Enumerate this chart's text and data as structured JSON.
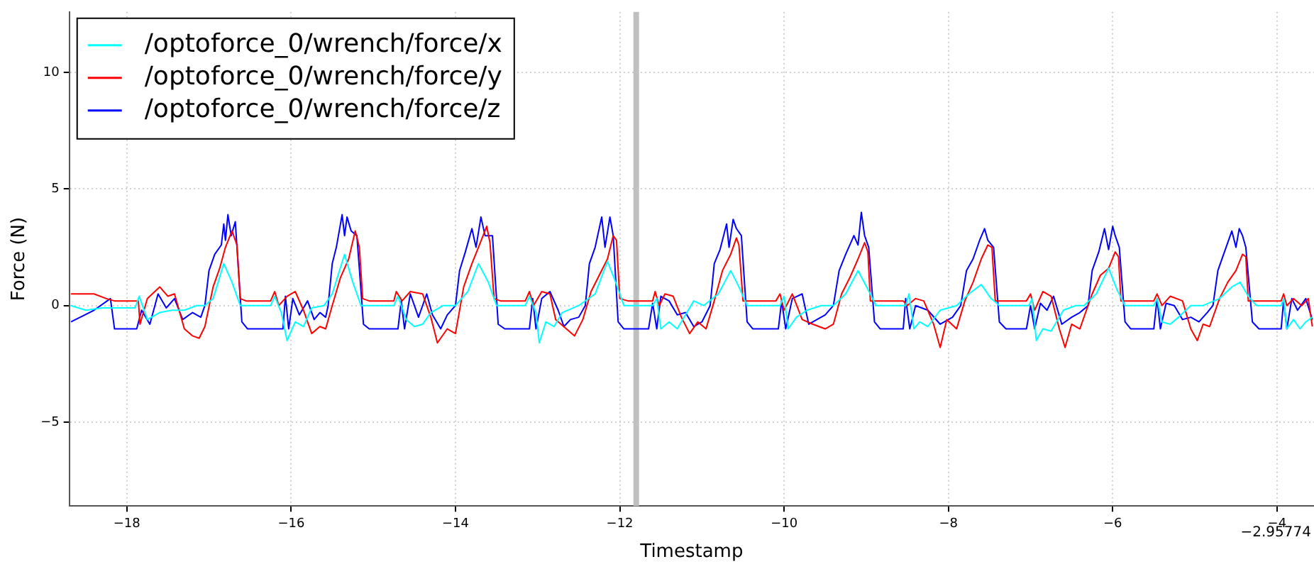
{
  "chart_data": {
    "type": "line",
    "xlabel": "Timestamp",
    "ylabel": "Force (N)",
    "legend": "top left",
    "grid": true,
    "marker": "none",
    "xlim": [
      -18.7,
      -3.55
    ],
    "ylim": [
      -8.6,
      12.6
    ],
    "xticks": [
      {
        "value": -18,
        "label": "−18"
      },
      {
        "value": -16,
        "label": "−16"
      },
      {
        "value": -14,
        "label": "−14"
      },
      {
        "value": -12,
        "label": "−12"
      },
      {
        "value": -10,
        "label": "−10"
      },
      {
        "value": -8,
        "label": "−8"
      },
      {
        "value": -6,
        "label": "−6"
      },
      {
        "value": -4,
        "label": "−4"
      }
    ],
    "yticks": [
      {
        "value": -5,
        "label": "−5"
      },
      0,
      5,
      10
    ],
    "ref_lines": [
      {
        "axis": "x",
        "value": -11.8,
        "color": "#c0c0c0"
      }
    ],
    "annotations": [
      "−2.95774"
    ],
    "series": [
      {
        "name": "/optoforce_0/wrench/force/x",
        "color": "#00ffff",
        "x": [
          -18.68,
          -18.5,
          -18.3,
          -17.9,
          -17.85,
          -17.75,
          -17.6,
          -17.45,
          -17.3,
          -17.15,
          -17.05,
          -16.95,
          -16.82,
          -16.72,
          -16.62,
          -16.25,
          -16.2,
          -16.12,
          -16.05,
          -15.95,
          -15.85,
          -15.75,
          -15.6,
          -15.5,
          -15.35,
          -15.25,
          -15.15,
          -14.75,
          -14.7,
          -14.6,
          -14.5,
          -14.4,
          -14.3,
          -14.15,
          -14.0,
          -13.85,
          -13.72,
          -13.6,
          -13.5,
          -13.15,
          -13.1,
          -13.02,
          -12.98,
          -12.9,
          -12.8,
          -12.7,
          -12.5,
          -12.3,
          -12.15,
          -12.05,
          -11.95,
          -11.6,
          -11.55,
          -11.5,
          -11.4,
          -11.3,
          -11.2,
          -11.1,
          -10.98,
          -10.8,
          -10.65,
          -10.55,
          -10.45,
          -10.05,
          -10.0,
          -9.95,
          -9.85,
          -9.72,
          -9.55,
          -9.4,
          -9.25,
          -9.1,
          -8.98,
          -8.88,
          -8.52,
          -8.48,
          -8.42,
          -8.35,
          -8.25,
          -8.1,
          -7.9,
          -7.75,
          -7.6,
          -7.48,
          -7.38,
          -7.02,
          -6.98,
          -6.93,
          -6.85,
          -6.75,
          -6.6,
          -6.45,
          -6.35,
          -6.2,
          -6.05,
          -5.95,
          -5.85,
          -5.5,
          -5.46,
          -5.4,
          -5.3,
          -5.2,
          -5.05,
          -4.9,
          -4.7,
          -4.55,
          -4.45,
          -4.35,
          -4.25,
          -3.95,
          -3.92,
          -3.88,
          -3.8,
          -3.72,
          -3.65,
          -3.57
        ],
        "values": [
          0.0,
          -0.2,
          -0.1,
          -0.1,
          0.4,
          -0.6,
          -0.3,
          -0.2,
          -0.2,
          0.0,
          0.0,
          0.3,
          1.8,
          1.0,
          0.0,
          0.0,
          0.4,
          -0.3,
          -1.5,
          -0.7,
          -0.9,
          -0.1,
          0.0,
          0.5,
          2.2,
          1.0,
          0.0,
          0.0,
          0.4,
          -0.6,
          -0.9,
          -0.8,
          -0.3,
          0.0,
          0.0,
          0.6,
          1.8,
          1.0,
          0.0,
          0.0,
          0.4,
          -0.3,
          -1.6,
          -0.7,
          -0.9,
          -0.3,
          0.0,
          0.5,
          1.9,
          1.0,
          0.0,
          0.0,
          0.3,
          -1.0,
          -0.7,
          -1.0,
          -0.4,
          0.2,
          0.0,
          0.5,
          1.5,
          0.8,
          0.0,
          0.0,
          0.4,
          -1.0,
          -0.5,
          -0.2,
          0.0,
          0.0,
          0.5,
          1.5,
          0.7,
          0.0,
          0.0,
          0.5,
          -1.0,
          -0.7,
          -0.9,
          -0.2,
          0.0,
          0.5,
          0.9,
          0.3,
          0.0,
          0.0,
          0.3,
          -1.5,
          -1.0,
          -1.1,
          -0.2,
          0.0,
          0.0,
          0.5,
          1.6,
          0.7,
          0.0,
          0.0,
          0.3,
          -0.7,
          -0.8,
          -0.5,
          0.0,
          0.0,
          0.3,
          0.8,
          1.0,
          0.4,
          0.0,
          0.0,
          0.3,
          -1.0,
          -0.6,
          -1.0,
          -0.7,
          -0.5
        ]
      },
      {
        "name": "/optoforce_0/wrench/force/y",
        "color": "#ff0000",
        "x": [
          -18.68,
          -18.4,
          -18.25,
          -18.15,
          -17.86,
          -17.84,
          -17.75,
          -17.6,
          -17.5,
          -17.42,
          -17.3,
          -17.2,
          -17.12,
          -17.05,
          -16.95,
          -16.87,
          -16.8,
          -16.72,
          -16.66,
          -16.62,
          -16.55,
          -16.25,
          -16.2,
          -16.15,
          -16.05,
          -15.95,
          -15.85,
          -15.75,
          -15.65,
          -15.58,
          -15.5,
          -15.4,
          -15.3,
          -15.22,
          -15.17,
          -15.13,
          -15.05,
          -14.75,
          -14.72,
          -14.65,
          -14.55,
          -14.4,
          -14.3,
          -14.22,
          -14.1,
          -14.0,
          -13.9,
          -13.8,
          -13.72,
          -13.62,
          -13.58,
          -13.53,
          -13.45,
          -13.15,
          -13.1,
          -13.05,
          -12.95,
          -12.85,
          -12.78,
          -12.65,
          -12.55,
          -12.45,
          -12.35,
          -12.25,
          -12.15,
          -12.08,
          -12.04,
          -12.0,
          -11.9,
          -11.6,
          -11.57,
          -11.52,
          -11.45,
          -11.35,
          -11.25,
          -11.15,
          -11.05,
          -10.95,
          -10.85,
          -10.75,
          -10.65,
          -10.58,
          -10.55,
          -10.5,
          -10.4,
          -10.1,
          -10.05,
          -10.0,
          -9.9,
          -9.78,
          -9.65,
          -9.5,
          -9.4,
          -9.3,
          -9.2,
          -9.1,
          -9.02,
          -8.98,
          -8.95,
          -8.85,
          -8.55,
          -8.5,
          -8.4,
          -8.3,
          -8.18,
          -8.1,
          -8.02,
          -7.9,
          -7.8,
          -7.7,
          -7.6,
          -7.52,
          -7.47,
          -7.43,
          -7.35,
          -7.05,
          -7.0,
          -6.95,
          -6.85,
          -6.75,
          -6.65,
          -6.58,
          -6.5,
          -6.4,
          -6.25,
          -6.15,
          -6.05,
          -5.97,
          -5.93,
          -5.9,
          -5.8,
          -5.5,
          -5.46,
          -5.4,
          -5.3,
          -5.15,
          -5.05,
          -4.97,
          -4.9,
          -4.82,
          -4.7,
          -4.6,
          -4.5,
          -4.42,
          -4.38,
          -4.35,
          -4.25,
          -3.95,
          -3.92,
          -3.88,
          -3.8,
          -3.7,
          -3.62,
          -3.57
        ],
        "values": [
          0.5,
          0.5,
          0.3,
          0.2,
          0.2,
          -0.8,
          0.3,
          0.8,
          0.4,
          0.5,
          -1.0,
          -1.3,
          -1.4,
          -0.9,
          0.8,
          1.6,
          2.5,
          3.2,
          2.6,
          0.3,
          0.2,
          0.2,
          0.6,
          0.0,
          0.4,
          0.6,
          -0.2,
          -1.2,
          -0.9,
          -1.0,
          0.0,
          1.2,
          2.0,
          3.2,
          2.5,
          0.3,
          0.2,
          0.2,
          0.6,
          0.2,
          0.6,
          0.5,
          -0.5,
          -1.6,
          -1.0,
          -1.2,
          0.8,
          1.8,
          2.5,
          3.4,
          2.7,
          0.3,
          0.2,
          0.2,
          0.6,
          0.0,
          0.6,
          0.5,
          -0.6,
          -1.0,
          -1.3,
          -0.6,
          0.6,
          1.3,
          2.0,
          3.0,
          2.8,
          0.3,
          0.2,
          0.2,
          0.6,
          0.0,
          0.5,
          0.4,
          -0.5,
          -1.2,
          -0.7,
          -1.0,
          0.2,
          1.5,
          2.2,
          2.9,
          2.6,
          0.2,
          0.2,
          0.2,
          0.5,
          -0.2,
          0.5,
          -0.6,
          -0.8,
          -1.0,
          -0.8,
          0.5,
          1.2,
          2.0,
          2.7,
          2.3,
          0.2,
          0.2,
          0.2,
          0.0,
          0.3,
          0.2,
          -0.8,
          -1.8,
          -0.6,
          -1.0,
          0.2,
          1.0,
          2.0,
          2.6,
          2.5,
          0.2,
          0.2,
          0.2,
          0.5,
          -0.2,
          0.6,
          0.4,
          -1.0,
          -1.8,
          -0.8,
          -1.0,
          0.5,
          1.3,
          1.6,
          2.3,
          2.1,
          0.2,
          0.2,
          0.2,
          0.5,
          0.0,
          0.4,
          0.2,
          -1.0,
          -1.5,
          -0.8,
          -0.9,
          0.3,
          1.0,
          1.5,
          2.2,
          2.1,
          0.2,
          0.2,
          0.2,
          0.5,
          0.0,
          0.3,
          0.0,
          0.3,
          -0.9
        ]
      },
      {
        "name": "/optoforce_0/wrench/force/z",
        "color": "#0000ff",
        "x": [
          -18.68,
          -18.4,
          -18.2,
          -18.15,
          -17.88,
          -17.82,
          -17.72,
          -17.62,
          -17.52,
          -17.42,
          -17.32,
          -17.2,
          -17.1,
          -17.05,
          -17.0,
          -16.93,
          -16.85,
          -16.82,
          -16.8,
          -16.77,
          -16.73,
          -16.68,
          -16.6,
          -16.53,
          -16.1,
          -16.07,
          -16.03,
          -15.98,
          -15.9,
          -15.8,
          -15.72,
          -15.65,
          -15.58,
          -15.55,
          -15.5,
          -15.45,
          -15.38,
          -15.35,
          -15.32,
          -15.27,
          -15.2,
          -15.12,
          -15.05,
          -14.7,
          -14.66,
          -14.62,
          -14.55,
          -14.45,
          -14.35,
          -14.28,
          -14.18,
          -14.1,
          -14.0,
          -13.95,
          -13.88,
          -13.8,
          -13.75,
          -13.69,
          -13.64,
          -13.55,
          -13.48,
          -13.4,
          -13.1,
          -13.06,
          -13.02,
          -12.95,
          -12.85,
          -12.75,
          -12.68,
          -12.6,
          -12.5,
          -12.42,
          -12.37,
          -12.3,
          -12.22,
          -12.18,
          -12.12,
          -12.08,
          -12.02,
          -11.95,
          -11.65,
          -11.6,
          -11.55,
          -11.5,
          -11.4,
          -11.3,
          -11.2,
          -11.1,
          -11.0,
          -10.9,
          -10.85,
          -10.78,
          -10.7,
          -10.67,
          -10.62,
          -10.58,
          -10.52,
          -10.45,
          -10.38,
          -10.07,
          -10.03,
          -9.98,
          -9.9,
          -9.78,
          -9.7,
          -9.6,
          -9.5,
          -9.4,
          -9.33,
          -9.25,
          -9.15,
          -9.1,
          -9.06,
          -9.02,
          -8.97,
          -8.9,
          -8.83,
          -8.55,
          -8.52,
          -8.47,
          -8.4,
          -8.25,
          -8.1,
          -7.95,
          -7.85,
          -7.78,
          -7.7,
          -7.62,
          -7.56,
          -7.52,
          -7.45,
          -7.38,
          -7.3,
          -7.05,
          -7.0,
          -6.95,
          -6.88,
          -6.8,
          -6.72,
          -6.62,
          -6.5,
          -6.4,
          -6.3,
          -6.25,
          -6.17,
          -6.1,
          -6.05,
          -6.0,
          -5.97,
          -5.92,
          -5.85,
          -5.78,
          -5.5,
          -5.46,
          -5.42,
          -5.35,
          -5.25,
          -5.15,
          -5.05,
          -4.95,
          -4.85,
          -4.78,
          -4.72,
          -4.65,
          -4.55,
          -4.5,
          -4.46,
          -4.42,
          -4.38,
          -4.3,
          -4.22,
          -3.95,
          -3.92,
          -3.88,
          -3.82,
          -3.75,
          -3.65,
          -3.57
        ],
        "values": [
          -0.7,
          -0.2,
          0.3,
          -1.0,
          -1.0,
          -0.2,
          -0.8,
          0.5,
          -0.1,
          0.3,
          -0.6,
          -0.3,
          -0.5,
          0.0,
          1.5,
          2.2,
          2.6,
          3.5,
          2.8,
          3.9,
          3.0,
          3.6,
          -0.7,
          -1.0,
          -1.0,
          0.4,
          -1.0,
          0.3,
          -0.4,
          0.2,
          -0.6,
          -0.3,
          -0.5,
          0.0,
          1.8,
          2.5,
          3.9,
          3.0,
          3.8,
          3.2,
          3.0,
          -0.8,
          -1.0,
          -1.0,
          0.2,
          -1.0,
          0.5,
          -0.5,
          0.5,
          -0.4,
          -1.0,
          -0.4,
          0.0,
          1.5,
          2.3,
          3.3,
          2.5,
          3.8,
          3.0,
          3.0,
          -0.8,
          -1.0,
          -1.0,
          0.3,
          -1.0,
          0.3,
          0.6,
          -0.2,
          -0.9,
          -0.6,
          -0.5,
          0.0,
          1.8,
          2.5,
          3.8,
          2.5,
          3.8,
          3.0,
          -0.7,
          -1.0,
          -1.0,
          0.1,
          -1.0,
          0.4,
          0.2,
          -0.4,
          -0.3,
          -0.9,
          -0.7,
          0.0,
          1.8,
          2.4,
          3.5,
          2.5,
          3.7,
          3.3,
          3.0,
          -0.7,
          -1.0,
          -1.0,
          0.2,
          -1.0,
          0.3,
          0.5,
          -0.8,
          -0.6,
          -0.4,
          0.0,
          1.5,
          2.2,
          3.0,
          2.6,
          4.0,
          3.0,
          2.5,
          -0.7,
          -1.0,
          -1.0,
          0.3,
          -1.0,
          0.0,
          -0.2,
          -0.8,
          -0.5,
          0.0,
          1.5,
          2.0,
          2.8,
          3.3,
          2.8,
          2.5,
          -0.7,
          -1.0,
          -1.0,
          0.0,
          -1.0,
          0.1,
          -0.2,
          0.4,
          -0.8,
          -0.5,
          -0.3,
          0.0,
          1.5,
          2.3,
          3.3,
          2.4,
          3.4,
          3.0,
          2.5,
          -0.7,
          -1.0,
          -1.0,
          0.3,
          -1.0,
          0.1,
          0.0,
          -0.6,
          -0.5,
          -0.7,
          -0.3,
          0.0,
          1.5,
          2.2,
          3.2,
          2.5,
          3.3,
          3.0,
          2.5,
          -0.7,
          -1.0,
          -1.0,
          0.2,
          -1.0,
          0.3,
          -0.2,
          0.3,
          -0.6
        ]
      }
    ]
  }
}
